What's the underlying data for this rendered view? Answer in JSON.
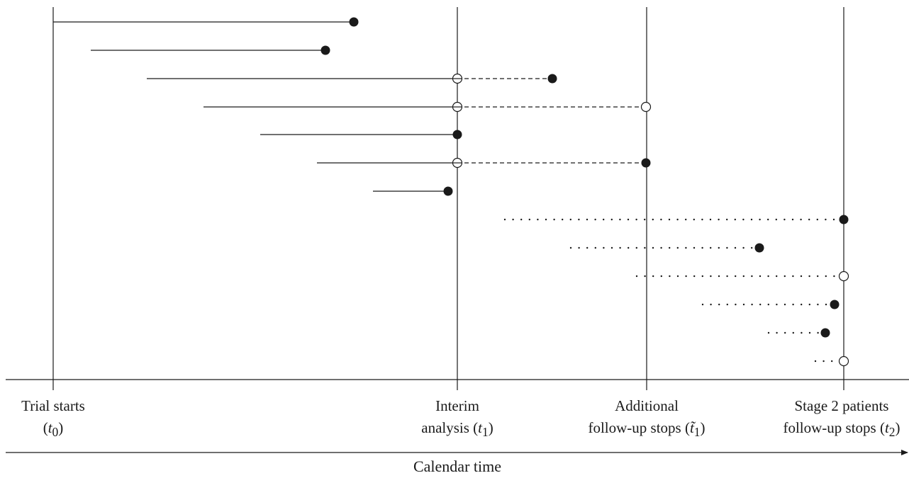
{
  "labels": {
    "trial_starts": {
      "line1": "Trial starts",
      "line2_pre": "(",
      "var": "t",
      "sub": "0",
      "line2_post": ")"
    },
    "interim": {
      "line1": "Interim",
      "line2_pre": "analysis (",
      "var": "t",
      "sub": "1",
      "line2_post": ")"
    },
    "additional": {
      "line1": "Additional",
      "line2_pre": "follow-up stops (",
      "var": "t̃",
      "sub": "1",
      "line2_post": ")"
    },
    "stage2": {
      "line1": "Stage 2 patients",
      "line2_pre": "follow-up stops (",
      "var": "t",
      "sub": "2",
      "line2_post": ")"
    }
  },
  "axis_title": "Calendar time",
  "diagram_data": {
    "milestones": [
      "t0",
      "t1",
      "t1_tilde",
      "t2"
    ],
    "patients": [
      {
        "id": 1,
        "stage": 1,
        "entry": "0.00",
        "segments": [
          {
            "style": "solid",
            "to": "end"
          }
        ],
        "end_marker": "event"
      },
      {
        "id": 2,
        "stage": 1,
        "segments": [
          {
            "style": "solid",
            "to": "end"
          }
        ],
        "end_marker": "event"
      },
      {
        "id": 3,
        "stage": 1,
        "segments": [
          {
            "style": "solid",
            "to": "t1"
          },
          {
            "style": "dashed",
            "to": "end"
          }
        ],
        "t1_marker": "censored-at-interim",
        "end_marker": "event"
      },
      {
        "id": 4,
        "stage": 1,
        "segments": [
          {
            "style": "solid",
            "to": "t1"
          },
          {
            "style": "dashed",
            "to": "t1_tilde"
          }
        ],
        "t1_marker": "censored-at-interim",
        "end_marker": "censored"
      },
      {
        "id": 5,
        "stage": 1,
        "segments": [
          {
            "style": "solid",
            "to": "t1"
          }
        ],
        "end_marker": "event"
      },
      {
        "id": 6,
        "stage": 1,
        "segments": [
          {
            "style": "solid",
            "to": "t1"
          },
          {
            "style": "dashed",
            "to": "t1_tilde"
          }
        ],
        "t1_marker": "censored-at-interim",
        "end_marker": "event"
      },
      {
        "id": 7,
        "stage": 1,
        "segments": [
          {
            "style": "solid",
            "to": "end"
          }
        ],
        "end_marker": "event"
      },
      {
        "id": 8,
        "stage": 2,
        "segments": [
          {
            "style": "dotted",
            "to": "t2"
          }
        ],
        "end_marker": "event"
      },
      {
        "id": 9,
        "stage": 2,
        "segments": [
          {
            "style": "dotted",
            "to": "end"
          }
        ],
        "end_marker": "event"
      },
      {
        "id": 10,
        "stage": 2,
        "segments": [
          {
            "style": "dotted",
            "to": "t2"
          }
        ],
        "end_marker": "censored"
      },
      {
        "id": 11,
        "stage": 2,
        "segments": [
          {
            "style": "dotted",
            "to": "end"
          }
        ],
        "end_marker": "event"
      },
      {
        "id": 12,
        "stage": 2,
        "segments": [
          {
            "style": "dotted",
            "to": "end"
          }
        ],
        "end_marker": "event"
      },
      {
        "id": 13,
        "stage": 2,
        "segments": [
          {
            "style": "dotted",
            "to": "t2"
          }
        ],
        "end_marker": "censored"
      }
    ]
  }
}
